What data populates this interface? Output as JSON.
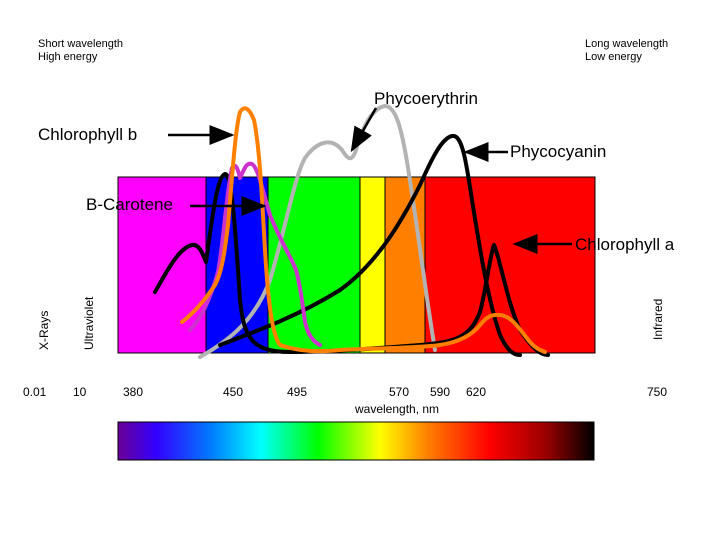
{
  "header": {
    "left": [
      "Short wavelength",
      "High energy"
    ],
    "right": [
      "Long wavelength",
      "Low energy"
    ]
  },
  "labels": {
    "phycoerythrin": "Phycoerythrin",
    "chlorophyll_b": "Chlorophyll b",
    "phycocyanin": "Phycocyanin",
    "b_carotene": "B-Carotene",
    "chlorophyll_a": "Chlorophyll a"
  },
  "regions": {
    "xrays": "X-Rays",
    "ultraviolet": "Ultraviolet",
    "infrared": "Infrared"
  },
  "axis": {
    "ticks": [
      "0.01",
      "10",
      "380",
      "450",
      "495",
      "570",
      "590",
      "620",
      "750"
    ],
    "label": "wavelength, nm"
  },
  "colors": {
    "violet": "#ff00ff",
    "blue": "#0000ff",
    "green": "#00ff00",
    "yellow": "#ffff00",
    "orange": "#ff8000",
    "red": "#ff0000",
    "chlorophyll_b_curve": "#ff8000",
    "carotene_curve": "#cc33cc",
    "phycoerythrin_curve": "#b3b3b3",
    "phycocyanin_curve": "#000000",
    "chlorophyll_a_curve": "#000000"
  }
}
